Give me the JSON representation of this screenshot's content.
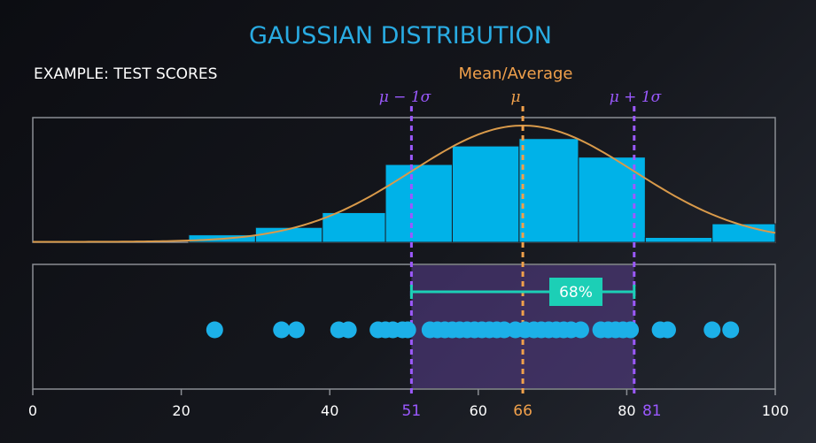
{
  "title": "GAUSSIAN DISTRIBUTION",
  "subtitle": "EXAMPLE: TEST SCORES",
  "mean_label": "Mean/Average",
  "sigma_labels": {
    "minus": "μ − 1σ",
    "mu": "μ",
    "plus": "μ + 1σ"
  },
  "colors": {
    "bar": "#00b2e8",
    "bar_stroke": "#1a1c22",
    "curve": "#d99a4a",
    "sigma_line": "#9b59ff",
    "mean_line": "#f0a04b",
    "band": "#5b3f8f",
    "bracket": "#1ccfb6",
    "frame": "#8a8d93",
    "dot": "#1cb0e8"
  },
  "chart_data": [
    {
      "type": "bar",
      "title": "GAUSSIAN DISTRIBUTION",
      "subtitle": "EXAMPLE: TEST SCORES",
      "bins": [
        {
          "x0": 21,
          "x1": 30,
          "count": 1
        },
        {
          "x0": 30,
          "x1": 39,
          "count": 2
        },
        {
          "x0": 39,
          "x1": 47.5,
          "count": 4
        },
        {
          "x0": 47.5,
          "x1": 56.5,
          "count": 10.5
        },
        {
          "x0": 56.5,
          "x1": 65.5,
          "count": 13
        },
        {
          "x0": 65.5,
          "x1": 73.5,
          "count": 14
        },
        {
          "x0": 73.5,
          "x1": 82.5,
          "count": 11.5
        },
        {
          "x0": 82.5,
          "x1": 91.5,
          "count": 0.6565
        },
        {
          "x0": 91.5,
          "x1": 100,
          "count": 2.5
        }
      ],
      "curve": {
        "mean": 66,
        "sd": 15
      },
      "xlim": [
        0,
        100
      ],
      "ylim": [
        0,
        16
      ],
      "grid": false
    },
    {
      "type": "scatter",
      "x": [
        24.5,
        33.5,
        35.5,
        41.2,
        42.5,
        46.5,
        47.5,
        48.5,
        49.8,
        50.5,
        53.5,
        54.5,
        55.5,
        56.5,
        57.5,
        58.5,
        59.5,
        60.5,
        61.5,
        62.5,
        63.5,
        65.0,
        66.3,
        67.5,
        68.5,
        69.5,
        70.5,
        71.5,
        72.5,
        73.8,
        76.5,
        77.5,
        78.5,
        79.5,
        80.5,
        84.5,
        85.5,
        91.5,
        94.0
      ],
      "xlim": [
        0,
        100
      ],
      "annotations": {
        "band_from": 51,
        "band_to": 81,
        "percent_label": "68%"
      }
    }
  ],
  "axis": {
    "ticks": [
      "0",
      "20",
      "40",
      "60",
      "80",
      "100"
    ],
    "markers": {
      "minus": "51",
      "mean": "66",
      "plus": "81"
    }
  }
}
